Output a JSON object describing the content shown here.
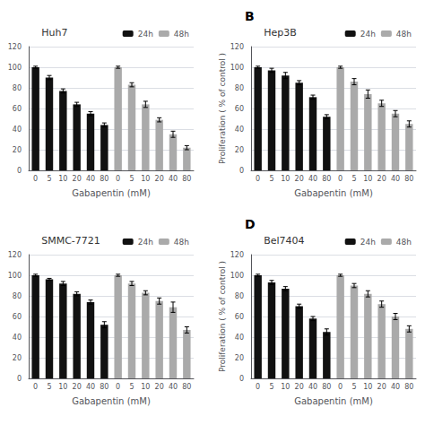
{
  "chart_data": [
    {
      "type": "bar",
      "title": "Huh7",
      "xlabel": "Gabapentin (mM)",
      "categories": [
        "0",
        "5",
        "10",
        "20",
        "40",
        "80",
        "0",
        "5",
        "10",
        "20",
        "40",
        "80"
      ],
      "series": [
        {
          "name": "24h",
          "color": "#111111",
          "values": [
            100,
            90,
            77,
            64,
            55,
            44,
            null,
            null,
            null,
            null,
            null,
            null
          ],
          "errors": [
            1,
            2,
            2,
            2,
            2,
            2,
            null,
            null,
            null,
            null,
            null,
            null
          ]
        },
        {
          "name": "48h",
          "color": "#aaaaaa",
          "values": [
            null,
            null,
            null,
            null,
            null,
            null,
            100,
            83,
            64,
            49,
            35,
            22
          ],
          "errors": [
            null,
            null,
            null,
            null,
            null,
            null,
            1,
            2,
            3,
            2,
            3,
            2
          ]
        }
      ],
      "ylim": [
        0,
        120
      ],
      "yticks": [
        0,
        20,
        40,
        60,
        80,
        100,
        120
      ],
      "grid": true,
      "legend": "upper right"
    },
    {
      "type": "bar",
      "label": "B",
      "title": "Hep3B",
      "xlabel": "Gabapentin (mM)",
      "ylabel": "Proliferation ( % of control )",
      "categories": [
        "0",
        "5",
        "10",
        "20",
        "40",
        "80",
        "0",
        "5",
        "10",
        "20",
        "40",
        "80"
      ],
      "series": [
        {
          "name": "24h",
          "color": "#111111",
          "values": [
            100,
            97,
            92,
            85,
            71,
            52,
            null,
            null,
            null,
            null,
            null,
            null
          ],
          "errors": [
            1,
            2,
            3,
            2,
            2,
            2,
            null,
            null,
            null,
            null,
            null,
            null
          ]
        },
        {
          "name": "48h",
          "color": "#aaaaaa",
          "values": [
            null,
            null,
            null,
            null,
            null,
            null,
            100,
            86,
            74,
            65,
            55,
            45
          ],
          "errors": [
            null,
            null,
            null,
            null,
            null,
            null,
            1,
            3,
            4,
            3,
            3,
            3
          ]
        }
      ],
      "ylim": [
        0,
        120
      ],
      "yticks": [
        0,
        20,
        40,
        60,
        80,
        100,
        120
      ],
      "grid": true,
      "legend": "upper right"
    },
    {
      "type": "bar",
      "title": "SMMC-7721",
      "xlabel": "Gabapentin (mM)",
      "categories": [
        "0",
        "5",
        "10",
        "20",
        "40",
        "80",
        "0",
        "5",
        "10",
        "20",
        "40",
        "80"
      ],
      "series": [
        {
          "name": "24h",
          "color": "#111111",
          "values": [
            100,
            96,
            92,
            82,
            74,
            52,
            null,
            null,
            null,
            null,
            null,
            null
          ],
          "errors": [
            1,
            1,
            2,
            2,
            2,
            3,
            null,
            null,
            null,
            null,
            null,
            null
          ]
        },
        {
          "name": "48h",
          "color": "#aaaaaa",
          "values": [
            null,
            null,
            null,
            null,
            null,
            null,
            100,
            92,
            83,
            75,
            69,
            47
          ],
          "errors": [
            null,
            null,
            null,
            null,
            null,
            null,
            1,
            2,
            2,
            3,
            5,
            3
          ]
        }
      ],
      "ylim": [
        0,
        120
      ],
      "yticks": [
        0,
        20,
        40,
        60,
        80,
        100,
        120
      ],
      "grid": true,
      "legend": "upper right"
    },
    {
      "type": "bar",
      "label": "D",
      "title": "Bel7404",
      "xlabel": "Gabapentin (mM)",
      "ylabel": "Proliferation ( % of control )",
      "categories": [
        "0",
        "5",
        "10",
        "20",
        "40",
        "80",
        "0",
        "5",
        "10",
        "20",
        "40",
        "80"
      ],
      "series": [
        {
          "name": "24h",
          "color": "#111111",
          "values": [
            100,
            93,
            87,
            70,
            58,
            45,
            null,
            null,
            null,
            null,
            null,
            null
          ],
          "errors": [
            1,
            2,
            2,
            2,
            2,
            3,
            null,
            null,
            null,
            null,
            null,
            null
          ]
        },
        {
          "name": "48h",
          "color": "#aaaaaa",
          "values": [
            null,
            null,
            null,
            null,
            null,
            null,
            100,
            90,
            82,
            72,
            60,
            48
          ],
          "errors": [
            null,
            null,
            null,
            null,
            null,
            null,
            1,
            2,
            3,
            3,
            3,
            3
          ]
        }
      ],
      "ylim": [
        0,
        120
      ],
      "yticks": [
        0,
        20,
        40,
        60,
        80,
        100,
        120
      ],
      "grid": true,
      "legend": "upper right"
    }
  ]
}
